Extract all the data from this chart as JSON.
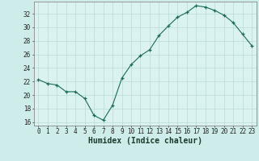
{
  "x": [
    0,
    1,
    2,
    3,
    4,
    5,
    6,
    7,
    8,
    9,
    10,
    11,
    12,
    13,
    14,
    15,
    16,
    17,
    18,
    19,
    20,
    21,
    22,
    23
  ],
  "y": [
    22.3,
    21.7,
    21.5,
    20.5,
    20.5,
    19.5,
    17.0,
    16.3,
    18.5,
    22.5,
    24.5,
    25.8,
    26.7,
    28.8,
    30.2,
    31.5,
    32.2,
    33.2,
    33.0,
    32.5,
    31.8,
    30.7,
    29.0,
    27.3
  ],
  "xlabel": "Humidex (Indice chaleur)",
  "xlim": [
    -0.5,
    23.5
  ],
  "ylim": [
    15.5,
    33.8
  ],
  "yticks": [
    16,
    18,
    20,
    22,
    24,
    26,
    28,
    30,
    32
  ],
  "xticks": [
    0,
    1,
    2,
    3,
    4,
    5,
    6,
    7,
    8,
    9,
    10,
    11,
    12,
    13,
    14,
    15,
    16,
    17,
    18,
    19,
    20,
    21,
    22,
    23
  ],
  "bg_color": "#ceecea",
  "plot_bg_color": "#daf2f0",
  "line_color": "#1a6b5a",
  "grid_color": "#b8dbd8",
  "tick_fontsize": 5.5,
  "xlabel_fontsize": 7
}
